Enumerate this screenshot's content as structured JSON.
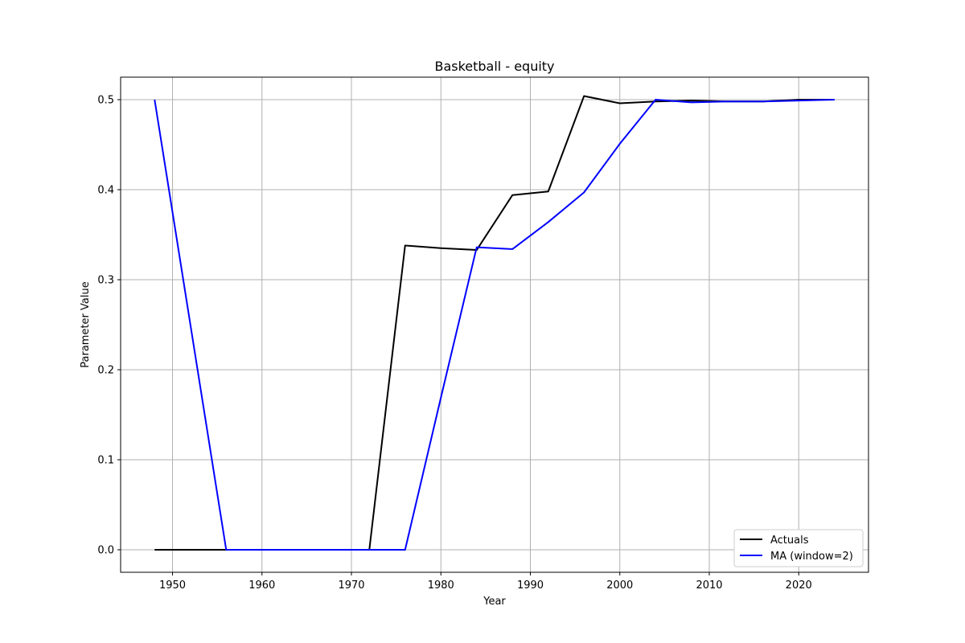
{
  "chart_data": {
    "type": "line",
    "title": "Basketball - equity",
    "xlabel": "Year",
    "ylabel": "Parameter Value",
    "xlim": [
      1944.2,
      1927.8
    ],
    "ylim": [
      -0.025,
      0.525
    ],
    "xticks": [
      1950,
      1960,
      1970,
      1980,
      1990,
      2000,
      2010,
      2020
    ],
    "yticks": [
      0.0,
      0.1,
      0.2,
      0.3,
      0.4,
      0.5
    ],
    "ytick_labels": [
      "0.0",
      "0.1",
      "0.2",
      "0.3",
      "0.4",
      "0.5"
    ],
    "grid": true,
    "legend_position": "bottom-right",
    "x": [
      1948,
      1952,
      1956,
      1960,
      1964,
      1968,
      1972,
      1976,
      1980,
      1984,
      1988,
      1992,
      1996,
      2000,
      2004,
      2008,
      2012,
      2016,
      2020,
      2024
    ],
    "series": [
      {
        "name": "Actuals",
        "color": "#000000",
        "values": [
          0.0,
          0.0,
          0.0,
          0.0,
          0.0,
          0.0,
          0.0,
          0.338,
          0.335,
          0.333,
          0.394,
          0.398,
          0.504,
          0.496,
          0.498,
          0.499,
          0.498,
          0.498,
          0.5,
          0.5
        ]
      },
      {
        "name": "MA (window=2)",
        "color": "#0000ff",
        "values": [
          0.5,
          0.25,
          0.0,
          0.0,
          0.0,
          0.0,
          0.0,
          0.0,
          0.169,
          0.336,
          0.334,
          0.364,
          0.397,
          0.451,
          0.5,
          0.497,
          0.498,
          0.498,
          0.499,
          0.5
        ]
      }
    ]
  }
}
